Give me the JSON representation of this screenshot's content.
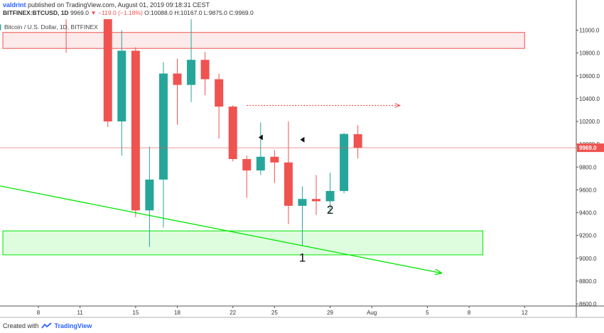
{
  "header": {
    "publisher": "valdrint",
    "published_text": "published on TradingView.com, August 01, 2019 09:18:31 CEST",
    "symbol": "BITFINEX:BTCUSD, 1D",
    "price": "9969.0",
    "change": "▼ −119.0 (−1.18%)",
    "ohlc": "O:10088.0 H:10167.0 L:9875.0 C:9969.0",
    "legend": "Bitcoin / U.S. Dollar, 1D, BITFINEX"
  },
  "footer": {
    "prefix": "Created with",
    "brand": "TradingView"
  },
  "colors": {
    "up": "#26a69a",
    "down": "#ef5350",
    "support": "#00e600",
    "resistance": "#ef5350",
    "price_label": "#ef5350"
  },
  "chart_data": {
    "type": "candlestick",
    "y_range": [
      8600,
      11100
    ],
    "y_ticks": [
      8600,
      8800,
      9000,
      9200,
      9400,
      9600,
      9800,
      10000,
      10200,
      10400,
      10600,
      10800,
      11000
    ],
    "y_tick_labels": [
      "8600.0",
      "8800.0",
      "9000.0",
      "9200.0",
      "9400.0",
      "9600.0",
      "9800.0",
      "10000.0",
      "10200.0",
      "10400.0",
      "10600.0",
      "10800.0",
      "11000.0"
    ],
    "x_range": [
      "2019-07-05",
      "2019-08-17"
    ],
    "x_ticks": [
      {
        "date": "2019-07-08",
        "label": "8"
      },
      {
        "date": "2019-07-11",
        "label": "11"
      },
      {
        "date": "2019-07-15",
        "label": "15"
      },
      {
        "date": "2019-07-18",
        "label": "18"
      },
      {
        "date": "2019-07-22",
        "label": "22"
      },
      {
        "date": "2019-07-25",
        "label": "25"
      },
      {
        "date": "2019-07-29",
        "label": "29"
      },
      {
        "date": "2019-08-01",
        "label": "Aug"
      },
      {
        "date": "2019-08-05",
        "label": "5"
      },
      {
        "date": "2019-08-08",
        "label": "8"
      },
      {
        "date": "2019-08-12",
        "label": "12"
      }
    ],
    "candles": [
      {
        "date": "2019-07-05",
        "open": 11000,
        "high": 11150,
        "low": 10950,
        "close": 11050
      },
      {
        "date": "2019-07-10",
        "open": 11500,
        "high": 12000,
        "low": 10800,
        "close": 11100
      },
      {
        "date": "2019-07-13",
        "open": 11500,
        "high": 11700,
        "low": 10150,
        "close": 10200
      },
      {
        "date": "2019-07-14",
        "open": 10200,
        "high": 11000,
        "low": 9900,
        "close": 10820
      },
      {
        "date": "2019-07-15",
        "open": 10820,
        "high": 10850,
        "low": 9360,
        "close": 9420
      },
      {
        "date": "2019-07-16",
        "open": 9420,
        "high": 9980,
        "low": 9100,
        "close": 9690
      },
      {
        "date": "2019-07-17",
        "open": 9690,
        "high": 10720,
        "low": 9270,
        "close": 10620
      },
      {
        "date": "2019-07-18",
        "open": 10620,
        "high": 10750,
        "low": 10170,
        "close": 10520
      },
      {
        "date": "2019-07-19",
        "open": 10520,
        "high": 11100,
        "low": 10370,
        "close": 10740
      },
      {
        "date": "2019-07-20",
        "open": 10740,
        "high": 10810,
        "low": 10430,
        "close": 10570
      },
      {
        "date": "2019-07-21",
        "open": 10570,
        "high": 10620,
        "low": 10050,
        "close": 10330
      },
      {
        "date": "2019-07-22",
        "open": 10330,
        "high": 10340,
        "low": 9850,
        "close": 9870
      },
      {
        "date": "2019-07-23",
        "open": 9870,
        "high": 9900,
        "low": 9530,
        "close": 9770
      },
      {
        "date": "2019-07-24",
        "open": 9770,
        "high": 10190,
        "low": 9730,
        "close": 9890
      },
      {
        "date": "2019-07-25",
        "open": 9890,
        "high": 9950,
        "low": 9660,
        "close": 9840
      },
      {
        "date": "2019-07-26",
        "open": 9840,
        "high": 10200,
        "low": 9300,
        "close": 9460
      },
      {
        "date": "2019-07-27",
        "open": 9460,
        "high": 9630,
        "low": 9110,
        "close": 9520
      },
      {
        "date": "2019-07-28",
        "open": 9520,
        "high": 9730,
        "low": 9380,
        "close": 9500
      },
      {
        "date": "2019-07-29",
        "open": 9500,
        "high": 9750,
        "low": 9390,
        "close": 9590
      },
      {
        "date": "2019-07-30",
        "open": 9590,
        "high": 10100,
        "low": 9570,
        "close": 10090
      },
      {
        "date": "2019-07-31",
        "open": 10088,
        "high": 10167,
        "low": 9875,
        "close": 9969
      }
    ],
    "last_price_label": "9969.0",
    "zones": [
      {
        "kind": "resistance",
        "from": "2019-07-05",
        "to": "2019-08-12",
        "low": 10840,
        "high": 10980
      },
      {
        "kind": "support",
        "from": "2019-07-05",
        "to": "2019-08-09",
        "low": 9030,
        "high": 9240
      }
    ],
    "lines": [
      {
        "kind": "trendline",
        "from": {
          "date": "2019-07-05",
          "price": 9640
        },
        "to": {
          "date": "2019-08-06",
          "price": 8870
        }
      },
      {
        "kind": "target-arrow",
        "from": {
          "date": "2019-07-23",
          "price": 10340
        },
        "to": {
          "date": "2019-08-03",
          "price": 10340
        }
      }
    ],
    "annotations": [
      {
        "text": "1",
        "date": "2019-07-27",
        "price": 8970
      },
      {
        "text": "2",
        "date": "2019-07-29",
        "price": 9390
      }
    ],
    "markers": [
      {
        "date": "2019-07-24",
        "price": 10060
      },
      {
        "date": "2019-07-27",
        "price": 10040
      }
    ]
  }
}
